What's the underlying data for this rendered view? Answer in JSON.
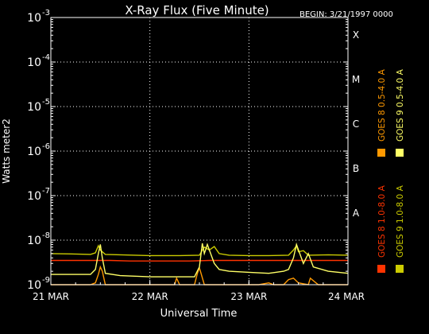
{
  "chart_data": {
    "type": "line",
    "title": "X-Ray Flux (Five Minute)",
    "begin_label": "BEGIN: 3/21/1997 0000",
    "xlabel": "Universal Time",
    "ylabel": "Watts meter2",
    "y_scale": "log",
    "ylim": [
      1e-09,
      0.001
    ],
    "y_ticks": [
      {
        "base": "10",
        "exp": "-3",
        "value": 0.001
      },
      {
        "base": "10",
        "exp": "-4",
        "value": 0.0001
      },
      {
        "base": "10",
        "exp": "-5",
        "value": 1e-05
      },
      {
        "base": "10",
        "exp": "-6",
        "value": 1e-06
      },
      {
        "base": "10",
        "exp": "-7",
        "value": 1e-07
      },
      {
        "base": "10",
        "exp": "-8",
        "value": 1e-08
      },
      {
        "base": "10",
        "exp": "-9",
        "value": 1e-09
      }
    ],
    "x_ticks": [
      {
        "label": "21 MAR",
        "value": 0
      },
      {
        "label": "22 MAR",
        "value": 1
      },
      {
        "label": "23 MAR",
        "value": 2
      },
      {
        "label": "24 MAR",
        "value": 3
      }
    ],
    "xlim": [
      0,
      3
    ],
    "flare_classes": [
      {
        "label": "X",
        "value": 0.0001
      },
      {
        "label": "M",
        "value": 1e-05
      },
      {
        "label": "C",
        "value": 1e-06
      },
      {
        "label": "B",
        "value": 1e-07
      },
      {
        "label": "A",
        "value": 1e-08
      }
    ],
    "grid": true,
    "series": [
      {
        "name": "GOES 8 1.0-8.0 A",
        "color": "#ff3300",
        "x": [
          0,
          0.2,
          0.4,
          0.5,
          0.6,
          0.8,
          1.0,
          1.2,
          1.4,
          1.6,
          1.8,
          2.0,
          2.2,
          2.4,
          2.6,
          2.8,
          3.0
        ],
        "y": [
          3.5e-09,
          3.5e-09,
          3.5e-09,
          3.5e-09,
          3.5e-09,
          3.4e-09,
          3.4e-09,
          3.4e-09,
          3.4e-09,
          3.5e-09,
          3.5e-09,
          3.5e-09,
          3.5e-09,
          3.5e-09,
          3.5e-09,
          3.5e-09,
          3.5e-09
        ]
      },
      {
        "name": "GOES 8 0.5-4.0 A",
        "color": "#ff9900",
        "x": [
          0.0,
          0.4,
          0.45,
          0.48,
          0.5,
          0.52,
          0.55,
          1.25,
          1.27,
          1.3,
          1.45,
          1.48,
          1.5,
          1.55,
          2.1,
          2.2,
          2.25,
          2.35,
          2.4,
          2.45,
          2.5,
          2.6,
          2.62,
          2.7,
          2.9,
          3.0
        ],
        "y": [
          1e-09,
          1e-09,
          1.1e-09,
          1.7e-09,
          2.5e-09,
          2e-09,
          1e-09,
          1e-09,
          1.4e-09,
          1e-09,
          1e-09,
          1.8e-09,
          2.4e-09,
          1e-09,
          1e-09,
          1.1e-09,
          1e-09,
          1e-09,
          1.3e-09,
          1.4e-09,
          1.1e-09,
          1e-09,
          1.4e-09,
          1e-09,
          1e-09,
          1e-09
        ]
      },
      {
        "name": "GOES 9 1.0-8.0 A",
        "color": "#cccc00",
        "x": [
          0.0,
          0.2,
          0.4,
          0.45,
          0.48,
          0.5,
          0.55,
          0.7,
          1.0,
          1.3,
          1.5,
          1.55,
          1.6,
          1.65,
          1.7,
          1.8,
          2.0,
          2.2,
          2.4,
          2.45,
          2.48,
          2.5,
          2.55,
          2.6,
          2.8,
          3.0
        ],
        "y": [
          5e-09,
          4.9e-09,
          4.8e-09,
          5.2e-09,
          7.5e-09,
          6e-09,
          4.8e-09,
          4.7e-09,
          4.5e-09,
          4.5e-09,
          4.6e-09,
          7e-09,
          6e-09,
          7.2e-09,
          5e-09,
          4.6e-09,
          4.5e-09,
          4.5e-09,
          4.6e-09,
          6e-09,
          7.5e-09,
          5.5e-09,
          5.8e-09,
          4.6e-09,
          4.7e-09,
          4.6e-09
        ]
      },
      {
        "name": "GOES 9 0.5-4.0 A",
        "color": "#ffff66",
        "x": [
          0.0,
          0.3,
          0.4,
          0.45,
          0.48,
          0.5,
          0.52,
          0.55,
          0.7,
          1.0,
          1.2,
          1.3,
          1.45,
          1.5,
          1.53,
          1.55,
          1.58,
          1.6,
          1.65,
          1.7,
          1.8,
          2.0,
          2.2,
          2.35,
          2.4,
          2.45,
          2.48,
          2.5,
          2.55,
          2.6,
          2.65,
          2.8,
          3.0
        ],
        "y": [
          1.7e-09,
          1.7e-09,
          1.7e-09,
          2.2e-09,
          5e-09,
          8e-09,
          4e-09,
          1.8e-09,
          1.6e-09,
          1.5e-09,
          1.5e-09,
          1.5e-09,
          1.5e-09,
          2.5e-09,
          8.5e-09,
          5e-09,
          8e-09,
          6e-09,
          3e-09,
          2.2e-09,
          2e-09,
          1.9e-09,
          1.8e-09,
          2e-09,
          2.2e-09,
          4e-09,
          8e-09,
          6e-09,
          3e-09,
          5e-09,
          2.5e-09,
          2e-09,
          1.8e-09
        ]
      }
    ]
  }
}
